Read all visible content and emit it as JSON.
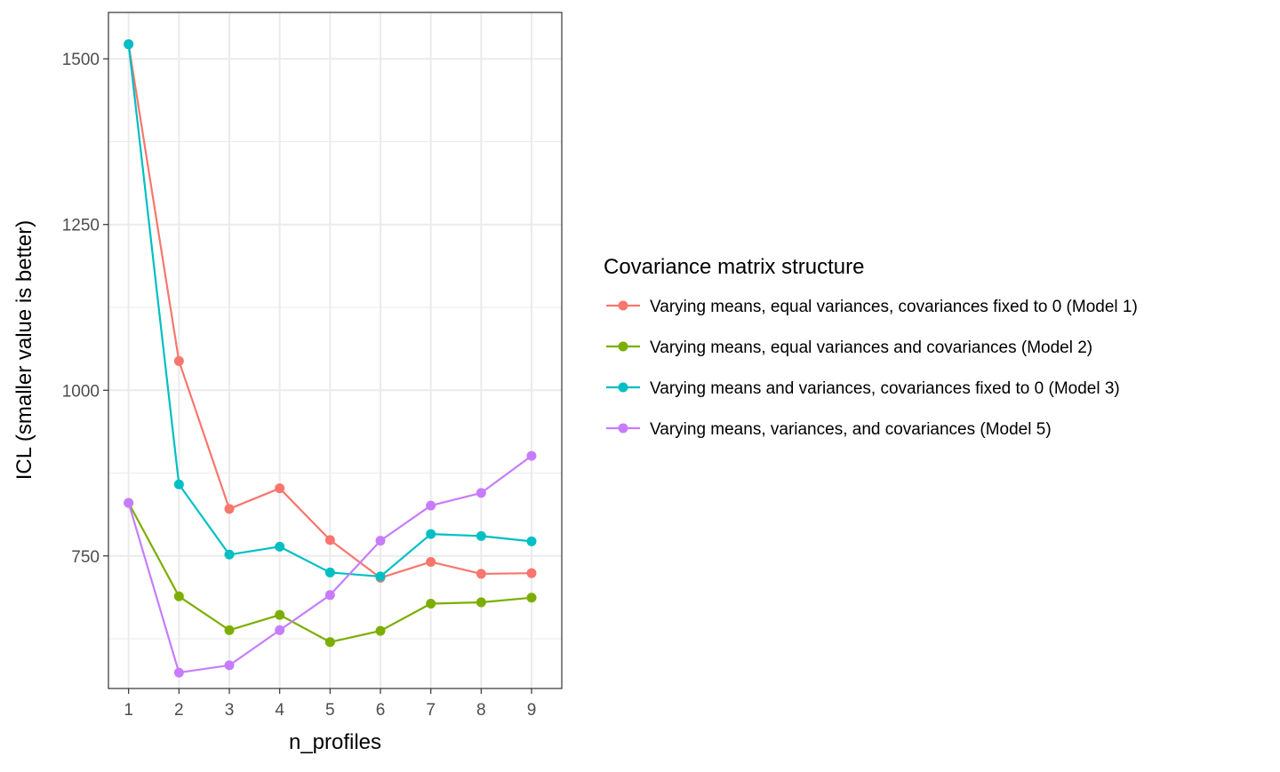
{
  "chart_data": {
    "type": "line",
    "xlabel": "n_profiles",
    "ylabel": "ICL (smaller value is better)",
    "x": [
      1,
      2,
      3,
      4,
      5,
      6,
      7,
      8,
      9
    ],
    "x_ticks": [
      "1",
      "2",
      "3",
      "4",
      "5",
      "6",
      "7",
      "8",
      "9"
    ],
    "y_ticks": [
      {
        "value": 750,
        "label": "750"
      },
      {
        "value": 1000,
        "label": "1000"
      },
      {
        "value": 1250,
        "label": "1250"
      },
      {
        "value": 1500,
        "label": "1500"
      }
    ],
    "xlim": [
      0.6,
      9.6
    ],
    "ylim": [
      550,
      1570
    ],
    "grid": true,
    "legend": {
      "title": "Covariance matrix structure",
      "position": "right"
    },
    "series": [
      {
        "name": "Varying means, equal variances, covariances fixed to 0 (Model 1)",
        "color": "#F8766D",
        "values": [
          1522,
          1044,
          821,
          852,
          774,
          717,
          741,
          723,
          724
        ]
      },
      {
        "name": "Varying means, equal variances and covariances (Model 2)",
        "color": "#7CAE00",
        "values": [
          830,
          689,
          638,
          661,
          620,
          637,
          678,
          680,
          687
        ]
      },
      {
        "name": "Varying means and variances, covariances fixed to 0 (Model 3)",
        "color": "#00BFC4",
        "values": [
          1522,
          858,
          752,
          764,
          725,
          719,
          783,
          780,
          772
        ]
      },
      {
        "name": "Varying means, variances, and covariances (Model 5)",
        "color": "#C77CFF",
        "values": [
          830,
          574,
          585,
          638,
          691,
          773,
          826,
          845,
          901
        ]
      }
    ]
  }
}
